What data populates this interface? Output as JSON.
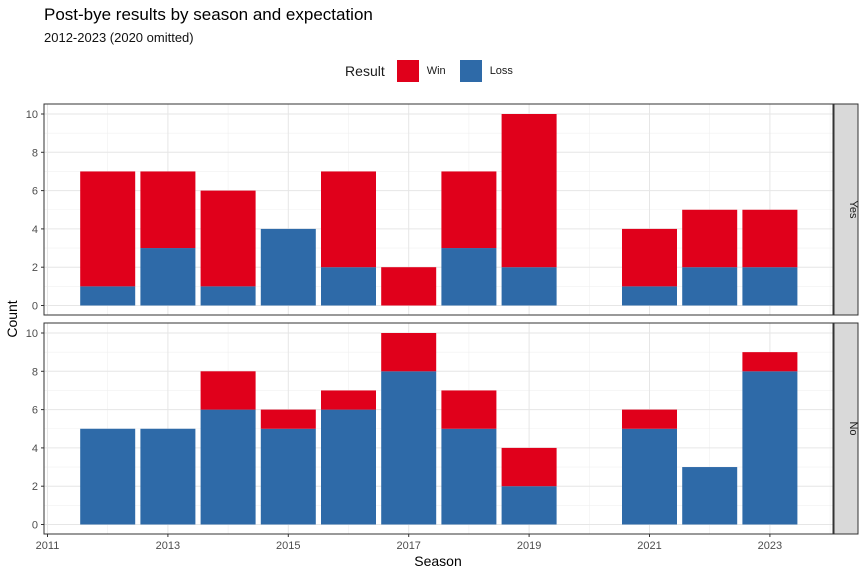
{
  "chart_data": {
    "type": "bar",
    "stacked": true,
    "title": "Post-bye results by season and expectation",
    "subtitle": "2012-2023 (2020 omitted)",
    "xlabel": "Season",
    "ylabel": "Count",
    "legend": {
      "title": "Result",
      "placement": "top",
      "entries": [
        "Win",
        "Loss"
      ]
    },
    "colors": {
      "Win": "#e0001b",
      "Loss": "#2e6aa8"
    },
    "x_ticks": [
      2011,
      2013,
      2015,
      2017,
      2019,
      2021,
      2023
    ],
    "x_range": [
      2011,
      2024
    ],
    "y_ticks": [
      0,
      2,
      4,
      6,
      8,
      10
    ],
    "ylim": [
      0,
      10
    ],
    "grid": true,
    "panels": [
      {
        "facet": "Yes",
        "x": [
          2012,
          2013,
          2014,
          2015,
          2016,
          2017,
          2018,
          2019,
          2021,
          2022,
          2023
        ],
        "series": [
          {
            "name": "Loss",
            "values": [
              1,
              3,
              1,
              4,
              2,
              0,
              3,
              2,
              1,
              2,
              2
            ]
          },
          {
            "name": "Win",
            "values": [
              6,
              4,
              5,
              0,
              5,
              2,
              4,
              8,
              3,
              3,
              3
            ]
          }
        ]
      },
      {
        "facet": "No",
        "x": [
          2012,
          2013,
          2014,
          2015,
          2016,
          2017,
          2018,
          2019,
          2021,
          2022,
          2023
        ],
        "series": [
          {
            "name": "Loss",
            "values": [
              5,
              5,
              6,
              5,
              6,
              8,
              5,
              2,
              5,
              3,
              8
            ]
          },
          {
            "name": "Win",
            "values": [
              0,
              0,
              2,
              1,
              1,
              2,
              2,
              2,
              1,
              0,
              1
            ]
          }
        ]
      }
    ]
  }
}
